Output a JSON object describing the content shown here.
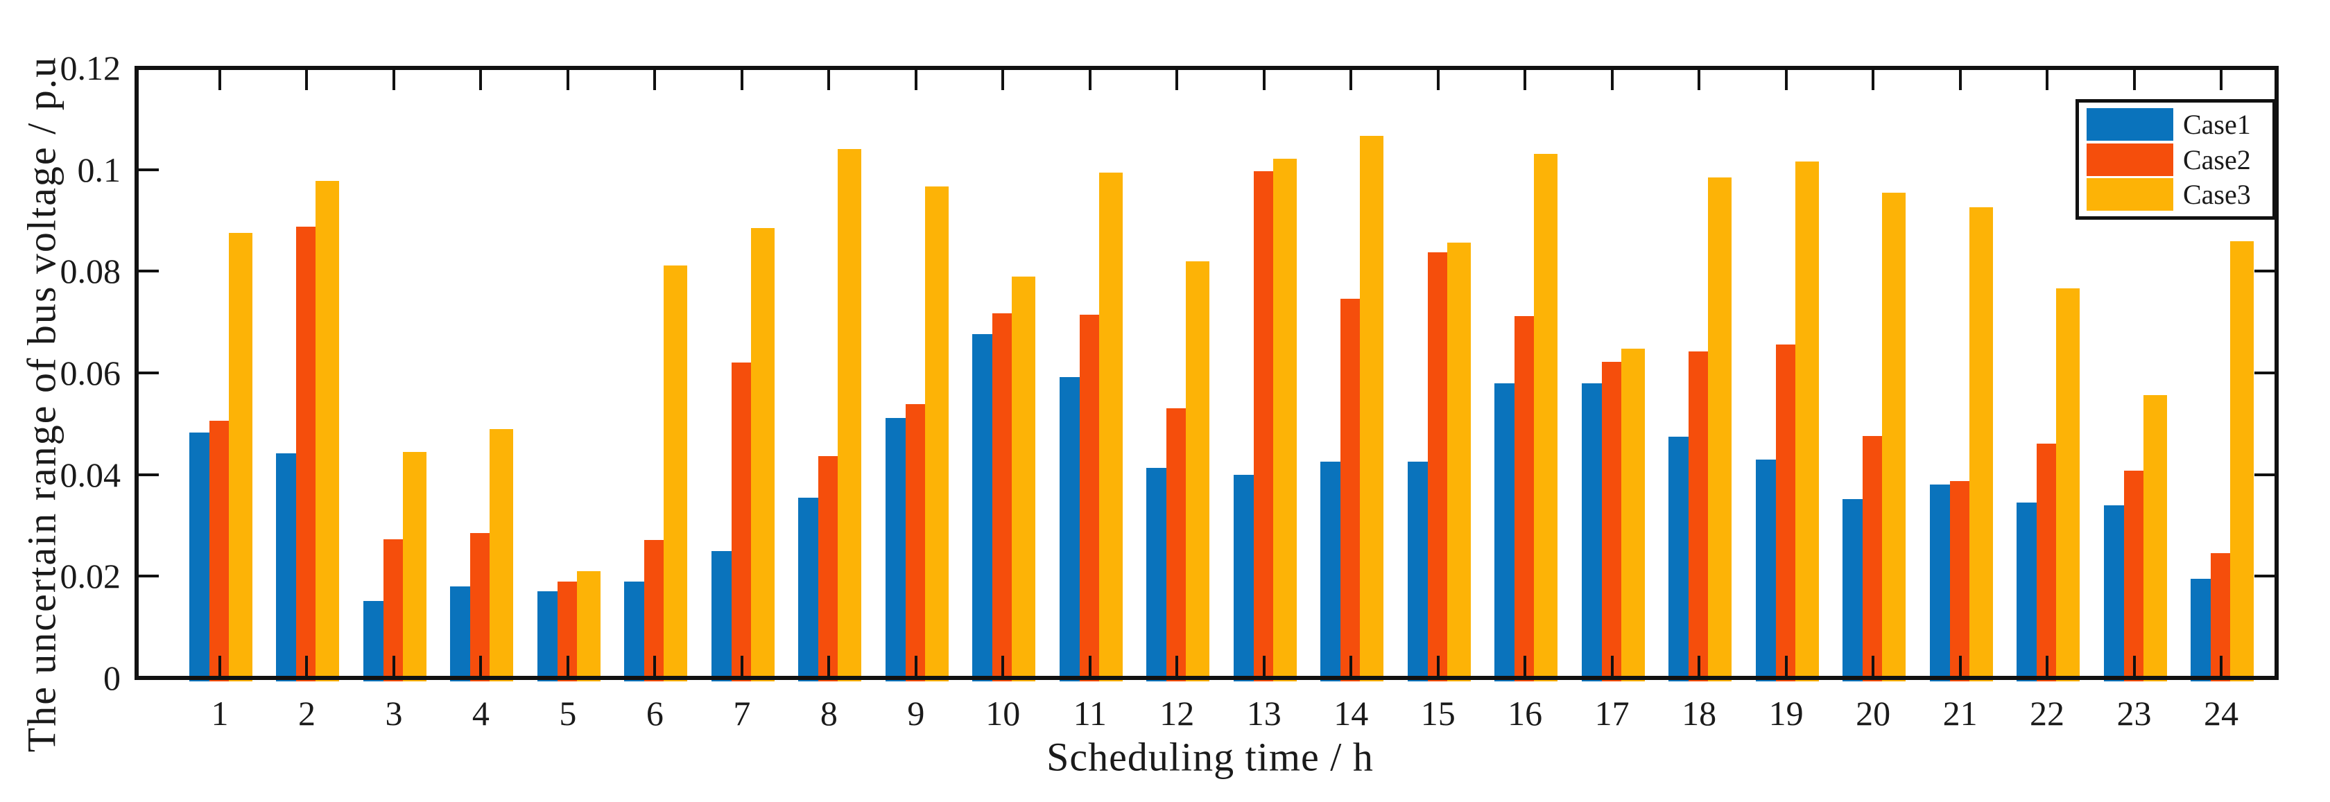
{
  "figure": {
    "background": "#ffffff",
    "axis_color": "#111111",
    "text_color": "#1a1a1a"
  },
  "chart_data": {
    "type": "bar",
    "title": "",
    "xlabel": "Scheduling time / h",
    "ylabel": "The uncertain range of bus voltage / p.u",
    "categories": [
      "1",
      "2",
      "3",
      "4",
      "5",
      "6",
      "7",
      "8",
      "9",
      "10",
      "11",
      "12",
      "13",
      "14",
      "15",
      "16",
      "17",
      "18",
      "19",
      "20",
      "21",
      "22",
      "23",
      "24"
    ],
    "series": [
      {
        "name": "Case1",
        "color": "#0A73BC",
        "values": [
          0.0483,
          0.0442,
          0.0152,
          0.018,
          0.017,
          0.019,
          0.0249,
          0.0355,
          0.0511,
          0.0677,
          0.0592,
          0.0413,
          0.04,
          0.0425,
          0.0426,
          0.058,
          0.058,
          0.0475,
          0.043,
          0.0352,
          0.038,
          0.0345,
          0.034,
          0.0195
        ]
      },
      {
        "name": "Case2",
        "color": "#F54E0C",
        "values": [
          0.0506,
          0.0888,
          0.0273,
          0.0285,
          0.019,
          0.0272,
          0.0621,
          0.0437,
          0.0539,
          0.0717,
          0.0714,
          0.0531,
          0.0997,
          0.0746,
          0.0838,
          0.0712,
          0.0622,
          0.0643,
          0.0656,
          0.0476,
          0.0388,
          0.0461,
          0.0408,
          0.0246
        ]
      },
      {
        "name": "Case3",
        "color": "#FDB306",
        "values": [
          0.0875,
          0.0978,
          0.0444,
          0.049,
          0.021,
          0.0812,
          0.0885,
          0.104,
          0.0967,
          0.079,
          0.0994,
          0.082,
          0.1022,
          0.1067,
          0.0857,
          0.1031,
          0.0648,
          0.0984,
          0.1016,
          0.0955,
          0.0926,
          0.0766,
          0.0557,
          0.0859
        ]
      }
    ],
    "ylim": [
      0,
      0.12
    ],
    "yticks": [
      0,
      0.02,
      0.04,
      0.06,
      0.08,
      0.1,
      0.12
    ],
    "ytick_labels": [
      "0",
      "0.02",
      "0.04",
      "0.06",
      "0.08",
      "0.1",
      "0.12"
    ],
    "grid": false,
    "legend_position": "top-right",
    "legend_items": [
      {
        "label": "Case1",
        "color": "#0A73BC"
      },
      {
        "label": "Case2",
        "color": "#F54E0C"
      },
      {
        "label": "Case3",
        "color": "#FDB306"
      }
    ]
  }
}
